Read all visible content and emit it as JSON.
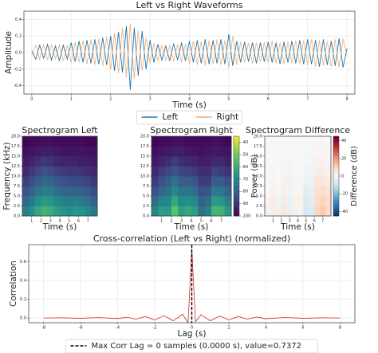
{
  "chart_data": [
    {
      "type": "line",
      "title": "Left vs Right Waveforms",
      "xlabel": "Time (s)",
      "ylabel": "Amplitude",
      "x": [
        0,
        0.1,
        0.2,
        0.3,
        0.4,
        0.5,
        0.6,
        0.7,
        0.8,
        0.9,
        1,
        1.1,
        1.2,
        1.3,
        1.4,
        1.5,
        1.6,
        1.7,
        1.8,
        1.9,
        2,
        2.1,
        2.2,
        2.3,
        2.4,
        2.5,
        2.6,
        2.7,
        2.8,
        2.9,
        3,
        3.1,
        3.2,
        3.3,
        3.4,
        3.5,
        3.6,
        3.7,
        3.8,
        3.9,
        4,
        4.1,
        4.2,
        4.3,
        4.4,
        4.5,
        4.6,
        4.7,
        4.8,
        4.9,
        5,
        5.1,
        5.2,
        5.3,
        5.4,
        5.5,
        5.6,
        5.7,
        5.8,
        5.9,
        6,
        6.1,
        6.2,
        6.3,
        6.4,
        6.5,
        6.6,
        6.7,
        6.8,
        6.9,
        7,
        7.1,
        7.2,
        7.3,
        7.4,
        7.5,
        7.6,
        7.7,
        7.8,
        7.9,
        8
      ],
      "series": [
        {
          "name": "Left",
          "color": "#1f77b4",
          "values": [
            0.02,
            -0.08,
            0.09,
            -0.07,
            0.1,
            -0.09,
            0.08,
            -0.1,
            0.09,
            -0.08,
            0.12,
            -0.11,
            0.14,
            -0.12,
            0.15,
            -0.13,
            0.16,
            -0.14,
            0.18,
            -0.15,
            0.2,
            -0.22,
            0.25,
            -0.24,
            0.32,
            -0.45,
            0.3,
            -0.28,
            0.26,
            -0.2,
            0.15,
            -0.12,
            0.1,
            -0.09,
            0.08,
            -0.1,
            0.11,
            -0.09,
            0.12,
            -0.1,
            0.14,
            -0.12,
            0.15,
            -0.13,
            0.16,
            -0.14,
            0.15,
            -0.13,
            0.16,
            -0.14,
            0.22,
            -0.16,
            0.14,
            -0.12,
            0.13,
            -0.11,
            0.12,
            -0.13,
            0.12,
            -0.11,
            0.13,
            -0.12,
            0.12,
            -0.14,
            0.13,
            -0.12,
            0.14,
            -0.13,
            0.15,
            -0.14,
            0.16,
            -0.14,
            0.15,
            -0.17,
            0.16,
            -0.15,
            0.14,
            -0.16,
            0.17,
            -0.18,
            0.05
          ]
        },
        {
          "name": "Right",
          "color": "#f0a868",
          "values": [
            -0.03,
            0.09,
            -0.08,
            0.1,
            -0.09,
            0.1,
            -0.08,
            0.09,
            -0.1,
            0.09,
            -0.12,
            0.13,
            -0.12,
            0.15,
            -0.14,
            0.16,
            -0.15,
            0.17,
            -0.16,
            0.19,
            -0.21,
            0.24,
            -0.25,
            0.3,
            -0.3,
            0.35,
            -0.32,
            0.27,
            -0.22,
            0.18,
            -0.13,
            0.11,
            -0.1,
            0.09,
            -0.1,
            0.09,
            -0.11,
            0.1,
            -0.12,
            0.11,
            -0.13,
            0.14,
            -0.15,
            0.14,
            -0.16,
            0.15,
            -0.14,
            0.16,
            -0.15,
            0.15,
            -0.18,
            0.2,
            -0.15,
            0.13,
            -0.12,
            0.12,
            -0.13,
            0.12,
            -0.11,
            0.12,
            -0.12,
            0.14,
            -0.13,
            0.12,
            -0.14,
            0.13,
            -0.13,
            0.15,
            -0.14,
            0.15,
            -0.15,
            0.16,
            -0.17,
            0.15,
            -0.16,
            0.14,
            -0.17,
            0.16,
            -0.18,
            0.17,
            -0.04
          ]
        }
      ],
      "xlim": [
        -0.2,
        8.2
      ],
      "ylim": [
        -0.5,
        0.5
      ],
      "xticks": [
        0,
        1,
        2,
        3,
        4,
        5,
        6,
        7,
        8
      ],
      "yticks": [
        -0.4,
        -0.2,
        {
          "value": 0,
          "label": "0.0"
        },
        0.2,
        0.4
      ],
      "grid": true,
      "legend": "below"
    },
    {
      "type": "heatmap",
      "title": "Spectrogram Left",
      "xlabel": "Time (s)",
      "ylabel": "Frequency (kHz)",
      "xlim": [
        0,
        8
      ],
      "ylim": [
        0,
        20
      ],
      "xticks": [
        1,
        2,
        3,
        4,
        5,
        6,
        7
      ],
      "yticks": [
        {
          "value": 0,
          "label": "0.0"
        },
        2.5,
        {
          "value": 5,
          "label": "5.0"
        },
        7.5,
        {
          "value": 10,
          "label": "10.0"
        },
        12.5,
        {
          "value": 15,
          "label": "15.0"
        },
        17.5,
        {
          "value": 20,
          "label": "20.0"
        }
      ],
      "cmap": "viridis",
      "zlim": [
        -100,
        -35
      ],
      "values": [
        [
          -72,
          -68,
          -62,
          -58,
          -60,
          -64,
          -66,
          -68,
          -66,
          -67,
          -70,
          -74
        ],
        [
          -78,
          -74,
          -68,
          -65,
          -66,
          -70,
          -72,
          -73,
          -72,
          -74,
          -76,
          -80
        ],
        [
          -84,
          -80,
          -75,
          -72,
          -73,
          -76,
          -78,
          -79,
          -79,
          -80,
          -82,
          -85
        ],
        [
          -88,
          -85,
          -81,
          -78,
          -79,
          -82,
          -84,
          -85,
          -85,
          -86,
          -87,
          -89
        ],
        [
          -92,
          -89,
          -86,
          -84,
          -85,
          -87,
          -88,
          -89,
          -89,
          -90,
          -91,
          -92
        ],
        [
          -95,
          -93,
          -91,
          -89,
          -90,
          -92,
          -93,
          -93,
          -93,
          -94,
          -94,
          -95
        ],
        [
          -97,
          -96,
          -95,
          -94,
          -94,
          -95,
          -96,
          -96,
          -96,
          -96,
          -97,
          -97
        ],
        [
          -99,
          -98,
          -98,
          -97,
          -97,
          -98,
          -98,
          -98,
          -98,
          -98,
          -99,
          -99
        ]
      ]
    },
    {
      "type": "heatmap",
      "title": "Spectrogram Right",
      "xlabel": "Time (s)",
      "xlim": [
        0,
        8
      ],
      "ylim": [
        0,
        20
      ],
      "xticks": [
        1,
        2,
        3,
        4,
        5,
        6,
        7
      ],
      "yticks": [
        {
          "value": 0,
          "label": "0.0"
        },
        2.5,
        {
          "value": 5,
          "label": "5.0"
        },
        7.5,
        {
          "value": 10,
          "label": "10.0"
        },
        12.5,
        {
          "value": 15,
          "label": "15.0"
        },
        17.5,
        {
          "value": 20,
          "label": "20.0"
        }
      ],
      "cmap": "viridis",
      "zlim": [
        -100,
        -35
      ],
      "zticks": [
        -100,
        -90,
        -80,
        -70,
        -60,
        -50,
        -40
      ],
      "zlabel": "Power (dB)",
      "values": [
        [
          -70,
          -64,
          -65,
          -53,
          -64,
          -61,
          -64,
          -76,
          -72,
          -57,
          -58,
          -65
        ],
        [
          -77,
          -71,
          -70,
          -61,
          -69,
          -68,
          -70,
          -80,
          -77,
          -65,
          -66,
          -72
        ],
        [
          -84,
          -78,
          -76,
          -69,
          -75,
          -75,
          -77,
          -84,
          -83,
          -73,
          -74,
          -79
        ],
        [
          -88,
          -84,
          -81,
          -76,
          -81,
          -81,
          -83,
          -88,
          -88,
          -81,
          -82,
          -85
        ],
        [
          -92,
          -88,
          -86,
          -83,
          -86,
          -87,
          -88,
          -91,
          -91,
          -87,
          -88,
          -90
        ],
        [
          -95,
          -93,
          -91,
          -88,
          -91,
          -92,
          -93,
          -94,
          -94,
          -92,
          -92,
          -94
        ],
        [
          -97,
          -96,
          -95,
          -94,
          -94,
          -95,
          -96,
          -97,
          -96,
          -95,
          -96,
          -96
        ],
        [
          -99,
          -98,
          -98,
          -97,
          -97,
          -98,
          -98,
          -98,
          -98,
          -97,
          -98,
          -99
        ]
      ]
    },
    {
      "type": "heatmap",
      "title": "Spectrogram Difference",
      "xlabel": "Time (s)",
      "xlim": [
        0,
        8
      ],
      "ylim": [
        0,
        20
      ],
      "xticks": [
        1,
        2,
        3,
        4,
        5,
        6,
        7
      ],
      "yticks": [
        {
          "value": 0,
          "label": "0.0"
        },
        2.5,
        {
          "value": 5,
          "label": "5.0"
        },
        7.5,
        {
          "value": 10,
          "label": "10.0"
        },
        12.5,
        {
          "value": 15,
          "label": "15.0"
        },
        17.5,
        {
          "value": 20,
          "label": "20.0"
        }
      ],
      "cmap": "RdBu_r",
      "zlim": [
        -45,
        45
      ],
      "zticks": [
        -40,
        -20,
        0,
        20,
        40
      ],
      "zlabel": "Difference (dB)",
      "values": [
        [
          2,
          4,
          -3,
          5,
          -4,
          3,
          2,
          -8,
          -6,
          10,
          12,
          9
        ],
        [
          1,
          3,
          -2,
          4,
          -3,
          2,
          2,
          -7,
          -5,
          9,
          10,
          8
        ],
        [
          0,
          2,
          -1,
          3,
          -2,
          1,
          1,
          -5,
          -4,
          7,
          8,
          6
        ],
        [
          0,
          1,
          0,
          2,
          -2,
          1,
          1,
          -3,
          -3,
          5,
          5,
          4
        ],
        [
          0,
          1,
          0,
          1,
          -1,
          0,
          0,
          -2,
          -2,
          3,
          3,
          2
        ],
        [
          0,
          0,
          0,
          1,
          -1,
          0,
          0,
          -1,
          -1,
          2,
          2,
          1
        ],
        [
          0,
          0,
          0,
          0,
          0,
          0,
          0,
          -1,
          0,
          1,
          1,
          1
        ],
        [
          0,
          0,
          0,
          0,
          0,
          0,
          0,
          0,
          0,
          1,
          1,
          0
        ]
      ]
    },
    {
      "type": "line",
      "title": "Cross-correlation (Left vs Right) (normalized)",
      "xlabel": "Lag (s)",
      "ylabel": "Correlation",
      "x": [
        -8,
        -7,
        -6,
        -5,
        -4,
        -3.5,
        -3,
        -2.5,
        -2,
        -1.5,
        -1,
        -0.5,
        -0.2,
        0,
        0.2,
        0.5,
        1,
        1.5,
        2,
        2.5,
        3,
        3.5,
        4,
        5,
        6,
        7,
        8
      ],
      "values": [
        0,
        0.002,
        -0.003,
        0.004,
        -0.006,
        0.008,
        -0.012,
        0.015,
        -0.02,
        0.025,
        -0.03,
        0.04,
        -0.05,
        0.7372,
        -0.04,
        0.035,
        -0.03,
        0.022,
        -0.02,
        0.015,
        -0.012,
        0.01,
        -0.008,
        0.005,
        -0.003,
        0.002,
        0
      ],
      "color": "#d62728",
      "xlim": [
        -8.8,
        8.8
      ],
      "ylim": [
        -0.05,
        0.78
      ],
      "xticks": [
        -8,
        -6,
        -4,
        -2,
        0,
        2,
        4,
        6,
        8
      ],
      "yticks": [
        {
          "value": 0,
          "label": "0.0"
        },
        {
          "value": 0.2,
          "label": "0.2"
        },
        {
          "value": 0.4,
          "label": "0.4"
        },
        {
          "value": 0.6,
          "label": "0.6"
        }
      ],
      "vline": 0,
      "vline_label": "Max Corr Lag = 0 samples (0.0000 s), value=0.7372",
      "grid": true,
      "legend": "below"
    }
  ]
}
